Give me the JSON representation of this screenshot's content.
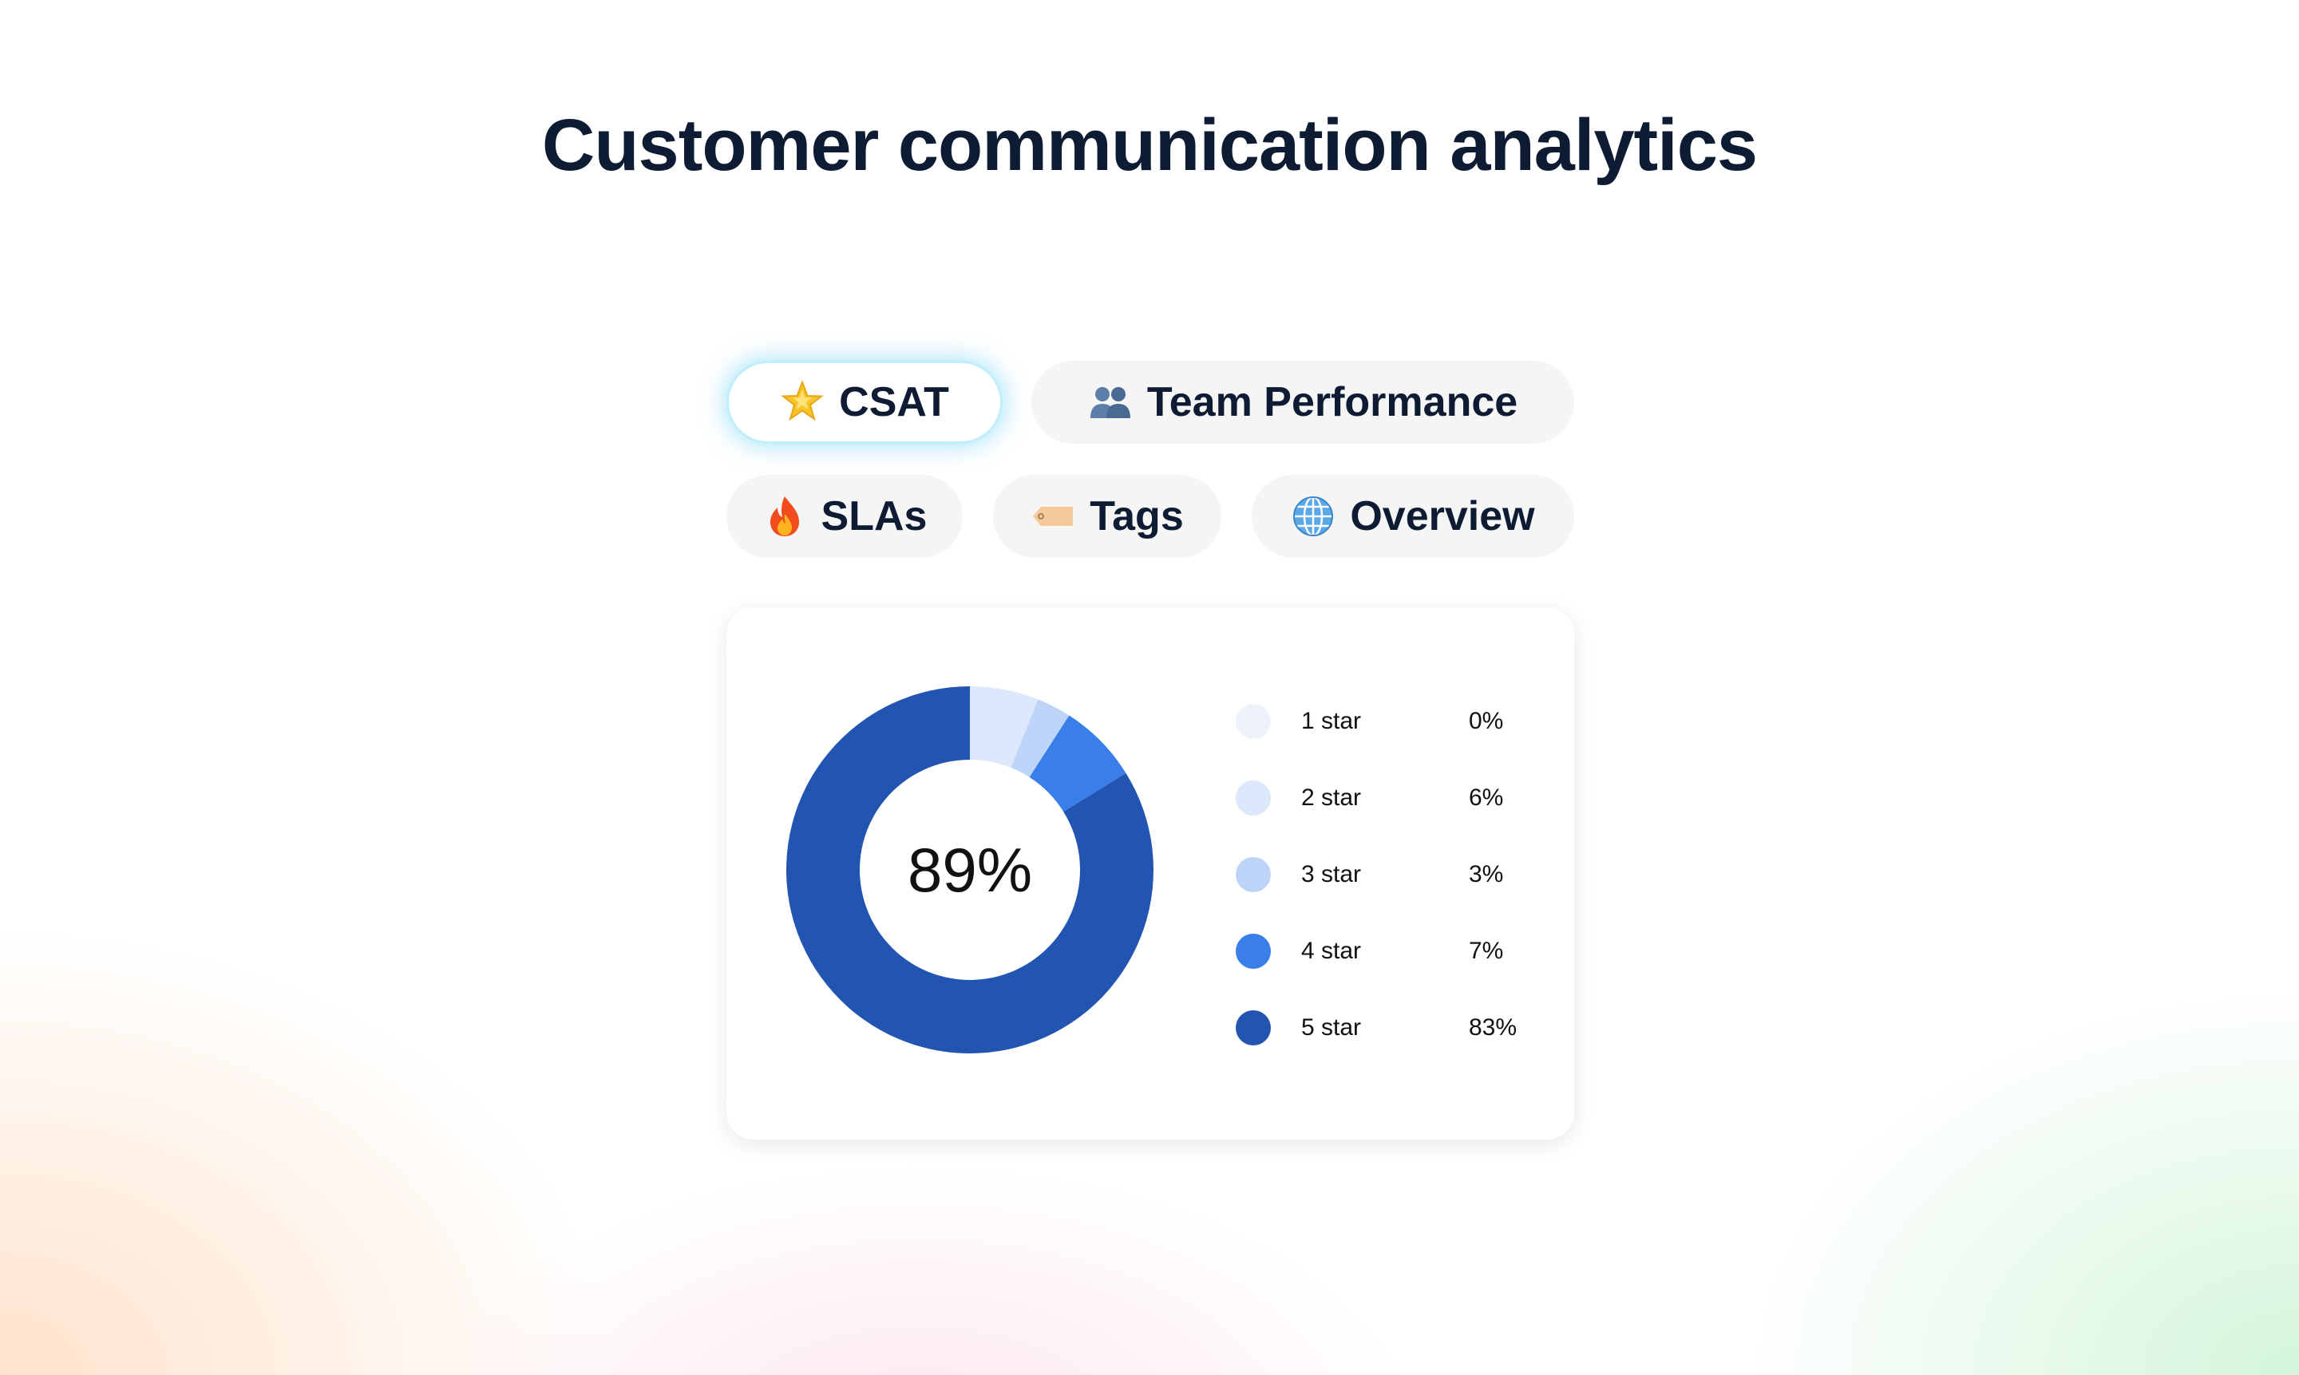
{
  "page": {
    "title": "Customer communication analytics"
  },
  "tabs": [
    {
      "id": "csat",
      "label": "CSAT",
      "icon": "star-icon",
      "active": true
    },
    {
      "id": "team",
      "label": "Team Performance",
      "icon": "people-icon",
      "active": false
    },
    {
      "id": "slas",
      "label": "SLAs",
      "icon": "fire-icon",
      "active": false
    },
    {
      "id": "tags",
      "label": "Tags",
      "icon": "tag-icon",
      "active": false
    },
    {
      "id": "overview",
      "label": "Overview",
      "icon": "globe-icon",
      "active": false
    }
  ],
  "colors": {
    "active_tab_glow": "#80d6f5",
    "title": "#0d1b33"
  },
  "chart_data": {
    "type": "pie",
    "center_label": "89%",
    "categories": [
      "1 star",
      "2 star",
      "3 star",
      "4 star",
      "5 star"
    ],
    "values": [
      0,
      6,
      3,
      7,
      83
    ],
    "value_labels": [
      "0%",
      "6%",
      "3%",
      "7%",
      "83%"
    ],
    "colors": [
      "#eef3fb",
      "#dce8fb",
      "#bdd4f8",
      "#3a7ee9",
      "#2254b2"
    ],
    "legend_position": "right"
  }
}
